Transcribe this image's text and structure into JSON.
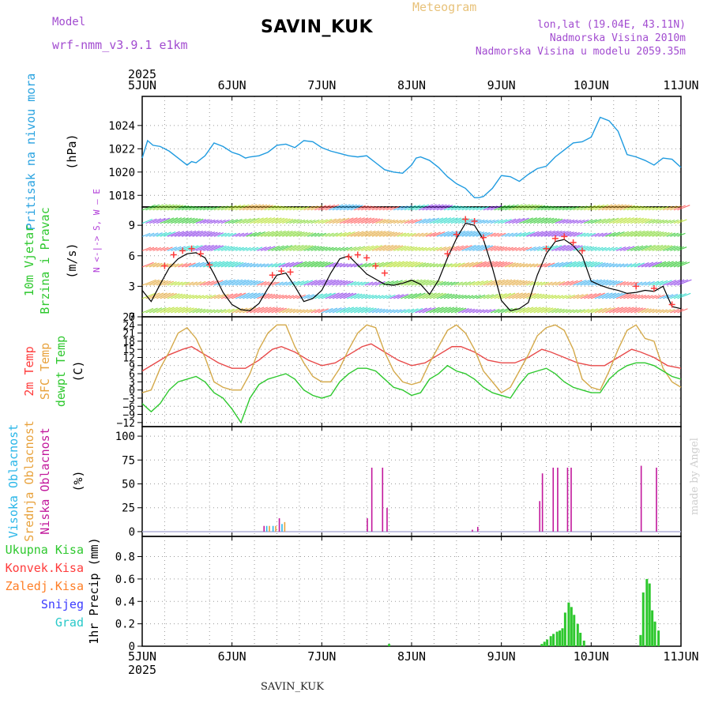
{
  "header": {
    "model_label": "Model",
    "model_name": "wrf-nmm_v3.9.1 e1km",
    "station": "SAVIN_KUK",
    "meteogram_label": "Meteogram",
    "lonlat": "lon,lat (19.04E, 43.11N)",
    "altitude": "Nadmorska Visina 2010m",
    "model_altitude": "Nadmorska Visina u modelu 2059.35m"
  },
  "footer": {
    "station": "SAVIN_KUK",
    "credit": "made by Angel"
  },
  "colors": {
    "pressure": "#1f9be0",
    "wind_max": "#000000",
    "gust_marker": "#ff3b3b",
    "temp_2m": "#e84a4a",
    "temp_sfc": "#d4a94a",
    "dewpoint": "#2ec82e",
    "cloud_high": "#29b6e8",
    "cloud_mid": "#e8a23c",
    "cloud_low": "#c2189c",
    "precip_total": "#2ec82e",
    "precip_conv": "#ff3b3b",
    "precip_frozen": "#ff7f27",
    "precip_snow": "#3a3aff",
    "precip_hail": "#29c9c9",
    "wind_dir_label": "#b03bd8",
    "label_pressure": "#2aa3e0",
    "label_wind": "#2ec82e",
    "label_temp_2m": "#ff3b3b",
    "label_temp_sfc": "#e8a23c",
    "label_dewpt": "#2ec82e",
    "label_cloud_high": "#29b6e8",
    "label_cloud_mid": "#e8a23c",
    "label_cloud_low": "#c2189c",
    "label_precip_total": "#2ec82e",
    "label_precip_conv": "#ff3b3b",
    "label_precip_frozen": "#ff7f27",
    "label_precip_snow": "#3a3aff",
    "label_precip_hail": "#29c9c9"
  },
  "time_axis": {
    "year": "2025",
    "ticks": [
      "5JUN",
      "6JUN",
      "7JUN",
      "8JUN",
      "9JUN",
      "10JUN",
      "11JUN"
    ]
  },
  "chart_data": [
    {
      "type": "line",
      "labels": [
        "Pritisak na nivou mora",
        "(hPa)"
      ],
      "ylim": [
        1017,
        1026.5
      ],
      "ticks": [
        1018,
        1020,
        1022,
        1024
      ],
      "series": [
        {
          "x": [
            0,
            0.06,
            0.12,
            0.2,
            0.3,
            0.4,
            0.5,
            0.55,
            0.6,
            0.7,
            0.8,
            0.9,
            1.0,
            1.08,
            1.15,
            1.2,
            1.3,
            1.4,
            1.5,
            1.6,
            1.7,
            1.8,
            1.9,
            2.0,
            2.1,
            2.2,
            2.3,
            2.4,
            2.5,
            2.6,
            2.7,
            2.8,
            2.9,
            3.0,
            3.05,
            3.1,
            3.2,
            3.3,
            3.4,
            3.5,
            3.6,
            3.7,
            3.75,
            3.8,
            3.9,
            4.0,
            4.1,
            4.2,
            4.3,
            4.4,
            4.5,
            4.6,
            4.7,
            4.8,
            4.9,
            5.0,
            5.1,
            5.2,
            5.3,
            5.4,
            5.5,
            5.6,
            5.7,
            5.8,
            5.9,
            6.0
          ],
          "y": [
            1021.2,
            1022.7,
            1022.3,
            1022.2,
            1021.8,
            1021.2,
            1020.6,
            1020.9,
            1020.8,
            1021.4,
            1022.5,
            1022.2,
            1021.7,
            1021.5,
            1021.2,
            1021.3,
            1021.4,
            1021.7,
            1022.3,
            1022.4,
            1022.1,
            1022.7,
            1022.6,
            1022.1,
            1021.8,
            1021.6,
            1021.4,
            1021.3,
            1021.4,
            1020.8,
            1020.2,
            1020.0,
            1019.9,
            1020.6,
            1021.2,
            1021.3,
            1021.0,
            1020.4,
            1019.6,
            1019.0,
            1018.6,
            1017.8,
            1017.8,
            1017.9,
            1018.6,
            1019.7,
            1019.6,
            1019.2,
            1019.8,
            1020.3,
            1020.5,
            1021.3,
            1021.9,
            1022.5,
            1022.6,
            1023.0,
            1024.7,
            1024.4,
            1023.5,
            1021.5,
            1021.3,
            1021.0,
            1020.6,
            1021.2,
            1021.1,
            1020.4
          ]
        }
      ]
    },
    {
      "type": "line",
      "labels": [
        "10m Vjetar",
        "Brzina i Pravac",
        "(m/s)"
      ],
      "direction_key": "N <-|-> S, W — E",
      "ylim": [
        0,
        10.8
      ],
      "ticks": [
        0,
        3,
        6,
        9
      ],
      "series": [
        {
          "name": "wind_speed",
          "x": [
            0,
            0.1,
            0.2,
            0.3,
            0.4,
            0.5,
            0.6,
            0.7,
            0.8,
            0.9,
            1.0,
            1.1,
            1.2,
            1.3,
            1.4,
            1.5,
            1.6,
            1.7,
            1.8,
            1.9,
            2.0,
            2.1,
            2.2,
            2.3,
            2.4,
            2.5,
            2.6,
            2.7,
            2.8,
            2.9,
            3.0,
            3.1,
            3.2,
            3.3,
            3.4,
            3.5,
            3.6,
            3.7,
            3.8,
            3.9,
            4.0,
            4.1,
            4.2,
            4.3,
            4.4,
            4.5,
            4.6,
            4.7,
            4.8,
            4.9,
            5.0,
            5.1,
            5.2,
            5.3,
            5.4,
            5.5,
            5.6,
            5.7,
            5.8,
            5.9,
            6.0
          ],
          "y": [
            2.6,
            1.5,
            3.2,
            4.8,
            5.7,
            6.2,
            6.3,
            5.8,
            4.2,
            2.4,
            1.2,
            0.7,
            0.6,
            1.3,
            2.8,
            4.1,
            4.3,
            3.0,
            1.5,
            1.8,
            2.6,
            4.3,
            5.7,
            6.0,
            5.1,
            4.2,
            3.7,
            3.2,
            3.1,
            3.3,
            3.6,
            3.2,
            2.2,
            3.6,
            5.8,
            7.7,
            9.2,
            9.0,
            7.6,
            4.8,
            1.6,
            0.6,
            0.8,
            1.4,
            4.1,
            6.2,
            7.4,
            7.6,
            7.0,
            6.0,
            3.5,
            3.1,
            2.8,
            2.6,
            2.3,
            2.4,
            2.6,
            2.5,
            3.0,
            1.0,
            0.8
          ]
        },
        {
          "name": "gust",
          "x": [
            0.25,
            0.35,
            0.45,
            0.55,
            0.65,
            0.75,
            1.45,
            1.55,
            1.65,
            2.3,
            2.4,
            2.5,
            2.6,
            2.7,
            3.4,
            3.5,
            3.6,
            3.7,
            3.8,
            4.5,
            4.6,
            4.7,
            4.8,
            4.9,
            5.5,
            5.7,
            5.9
          ],
          "y": [
            5.0,
            6.1,
            6.5,
            6.7,
            6.2,
            5.1,
            4.1,
            4.5,
            4.4,
            5.9,
            6.1,
            5.8,
            5.0,
            4.3,
            6.2,
            8.1,
            9.6,
            9.4,
            7.8,
            6.7,
            7.7,
            7.9,
            7.3,
            6.5,
            3.0,
            2.8,
            1.2
          ]
        }
      ]
    },
    {
      "type": "line",
      "labels": [
        "2m Temp",
        "SFC Temp",
        "dewpt Temp",
        "(C)"
      ],
      "ylim": [
        -13.5,
        27
      ],
      "ticks": [
        -12,
        -9,
        -6,
        -3,
        0,
        3,
        6,
        9,
        12,
        15,
        18,
        21,
        24,
        27
      ],
      "tick_labels": [
        "−12",
        "−9",
        "−6",
        "−3",
        "0",
        "3",
        "6",
        "9",
        "12",
        "15",
        "18",
        "21",
        "24",
        "27"
      ],
      "series": [
        {
          "name": "2m Temp",
          "x": [
            0,
            0.15,
            0.3,
            0.45,
            0.55,
            0.7,
            0.85,
            1.0,
            1.15,
            1.3,
            1.45,
            1.55,
            1.7,
            1.85,
            2.0,
            2.15,
            2.3,
            2.45,
            2.55,
            2.7,
            2.85,
            3.0,
            3.15,
            3.3,
            3.45,
            3.55,
            3.7,
            3.85,
            4.0,
            4.15,
            4.3,
            4.45,
            4.55,
            4.7,
            4.85,
            5.0,
            5.15,
            5.3,
            5.45,
            5.55,
            5.7,
            5.85,
            6.0
          ],
          "y": [
            7,
            10,
            13,
            15,
            16,
            13,
            10,
            8,
            8,
            11,
            15,
            16,
            14,
            11,
            9,
            10,
            13,
            16,
            17,
            14,
            11,
            9,
            10,
            13,
            16,
            16,
            14,
            11,
            10,
            10,
            12,
            15,
            14,
            12,
            10,
            9,
            9,
            12,
            15,
            14,
            12,
            9,
            8
          ]
        },
        {
          "name": "SFC Temp",
          "x": [
            0,
            0.1,
            0.2,
            0.3,
            0.4,
            0.5,
            0.6,
            0.7,
            0.8,
            0.9,
            1.0,
            1.1,
            1.2,
            1.3,
            1.4,
            1.5,
            1.6,
            1.7,
            1.8,
            1.9,
            2.0,
            2.1,
            2.2,
            2.3,
            2.4,
            2.5,
            2.6,
            2.7,
            2.8,
            2.9,
            3.0,
            3.1,
            3.2,
            3.3,
            3.4,
            3.5,
            3.6,
            3.7,
            3.8,
            3.9,
            4.0,
            4.1,
            4.2,
            4.3,
            4.4,
            4.5,
            4.6,
            4.7,
            4.8,
            4.9,
            5.0,
            5.1,
            5.2,
            5.3,
            5.4,
            5.5,
            5.6,
            5.7,
            5.8,
            5.9,
            6.0
          ],
          "y": [
            -1,
            0,
            8,
            14,
            21,
            23,
            19,
            12,
            3,
            1,
            0,
            0,
            6,
            15,
            21,
            24,
            24,
            16,
            10,
            5,
            3,
            3,
            8,
            15,
            21,
            24,
            23,
            14,
            7,
            3,
            2,
            3,
            10,
            16,
            22,
            24,
            21,
            15,
            7,
            3,
            -1,
            1,
            7,
            13,
            20,
            23,
            24,
            22,
            15,
            4,
            1,
            0,
            7,
            15,
            22,
            24,
            19,
            18,
            8,
            3,
            1
          ]
        },
        {
          "name": "dewpt Temp",
          "x": [
            0,
            0.1,
            0.2,
            0.3,
            0.4,
            0.5,
            0.6,
            0.7,
            0.8,
            0.9,
            1.0,
            1.1,
            1.2,
            1.3,
            1.4,
            1.5,
            1.6,
            1.7,
            1.8,
            1.9,
            2.0,
            2.1,
            2.2,
            2.3,
            2.4,
            2.5,
            2.6,
            2.7,
            2.8,
            2.9,
            3.0,
            3.1,
            3.2,
            3.3,
            3.4,
            3.5,
            3.6,
            3.7,
            3.8,
            3.9,
            4.0,
            4.1,
            4.2,
            4.3,
            4.4,
            4.5,
            4.6,
            4.7,
            4.8,
            4.9,
            5.0,
            5.1,
            5.2,
            5.3,
            5.4,
            5.5,
            5.6,
            5.7,
            5.8,
            5.9,
            6.0
          ],
          "y": [
            -5,
            -8,
            -5,
            0,
            3,
            4,
            5,
            3,
            -1,
            -3,
            -7,
            -12,
            -3,
            2,
            4,
            5,
            6,
            4,
            0,
            -2,
            -3,
            -2,
            3,
            6,
            8,
            8,
            7,
            4,
            1,
            0,
            -2,
            -1,
            4,
            6,
            9,
            7,
            6,
            4,
            1,
            -1,
            -2,
            -3,
            2,
            6,
            7,
            8,
            6,
            3,
            1,
            0,
            -1,
            -1,
            4,
            7,
            9,
            10,
            10,
            9,
            7,
            5,
            4
          ]
        }
      ]
    },
    {
      "type": "bar",
      "labels": [
        "Visoka Oblacnost",
        "Srednja Oblacnost",
        "Niska Oblacnost",
        "(%)"
      ],
      "ylim": [
        -5,
        110
      ],
      "ticks": [
        0,
        25,
        50,
        75,
        100
      ],
      "series": [
        {
          "name": "Visoka Oblacnost",
          "x": [
            1.38,
            1.45,
            1.55
          ],
          "values": [
            6,
            6,
            8
          ]
        },
        {
          "name": "Srednja Oblacnost",
          "x": [
            1.41,
            1.48,
            1.58
          ],
          "values": [
            6,
            6,
            10
          ]
        },
        {
          "name": "Niska Oblacnost",
          "x": [
            1.35,
            1.52,
            2.5,
            2.55,
            2.67,
            2.72,
            3.67,
            3.73,
            4.42,
            4.45,
            4.57,
            4.62,
            4.73,
            4.77,
            5.55,
            5.72
          ],
          "values": [
            6,
            14,
            14,
            67,
            67,
            25,
            2,
            5,
            32,
            61,
            67,
            67,
            67,
            67,
            69,
            67
          ]
        }
      ]
    },
    {
      "type": "bar",
      "labels": [
        "Ukupna Kisa",
        "Konvek.Kisa",
        "Zaledj.Kisa",
        "Snijeg",
        "Grad",
        "1hr Precip (mm)"
      ],
      "ylim": [
        0,
        0.98
      ],
      "ticks": [
        0,
        0.2,
        0.4,
        0.6,
        0.8
      ],
      "tick_labels": [
        "0",
        "0.2",
        "0.4",
        "0.6",
        "0.8"
      ],
      "series": [
        {
          "name": "Ukupna Kisa",
          "x": [
            2.75,
            4.45,
            4.48,
            4.51,
            4.55,
            4.58,
            4.62,
            4.65,
            4.68,
            4.71,
            4.75,
            4.78,
            4.81,
            4.85,
            4.88,
            4.92,
            5.55,
            5.58,
            5.62,
            5.65,
            5.68,
            5.71,
            5.75
          ],
          "values": [
            0.02,
            0.02,
            0.04,
            0.06,
            0.09,
            0.11,
            0.13,
            0.14,
            0.16,
            0.3,
            0.39,
            0.35,
            0.28,
            0.2,
            0.12,
            0.05,
            0.1,
            0.48,
            0.6,
            0.56,
            0.32,
            0.22,
            0.14
          ]
        }
      ]
    }
  ]
}
